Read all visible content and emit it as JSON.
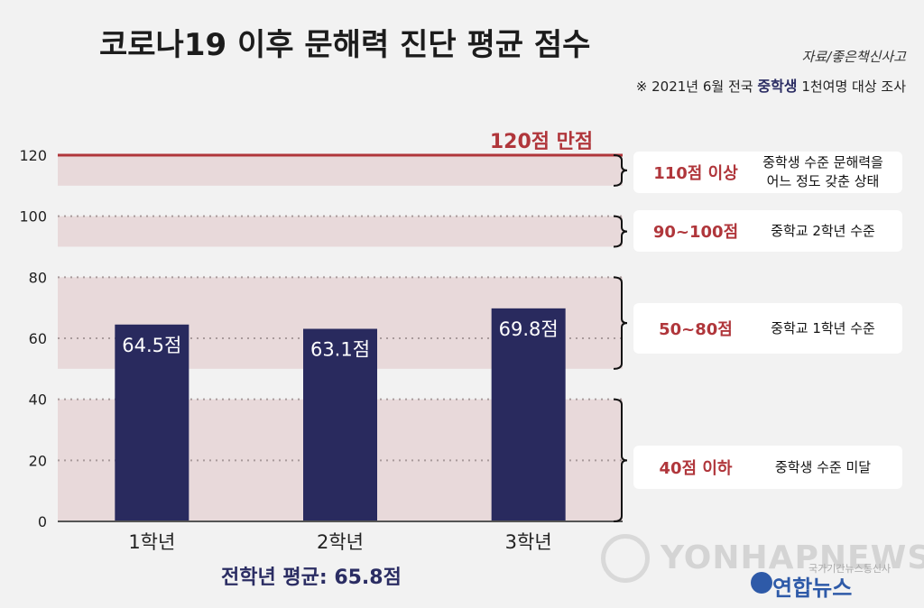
{
  "header": {
    "title": "코로나19 이후 문해력 진단 평균 점수",
    "source": "자료/좋은책신사고",
    "note_prefix": "※ 2021년 6월 전국",
    "note_highlight": "중학생",
    "note_suffix": "1천여명 대상 조사"
  },
  "chart_data": {
    "type": "bar",
    "categories": [
      "1학년",
      "2학년",
      "3학년"
    ],
    "values": [
      64.5,
      63.1,
      69.8
    ],
    "value_labels": [
      "64.5점",
      "63.1점",
      "69.8점"
    ],
    "ylim": [
      0,
      120
    ],
    "yticks": [
      0,
      20,
      40,
      60,
      80,
      100,
      120
    ],
    "grid": true,
    "bar_color": "#292a5e",
    "max_line": {
      "value": 120,
      "label": "120점 만점",
      "color": "#b0363b"
    },
    "bands": [
      {
        "from": 110,
        "to": 120
      },
      {
        "from": 90,
        "to": 100
      },
      {
        "from": 50,
        "to": 80
      },
      {
        "from": 0,
        "to": 40
      }
    ],
    "band_color": "#e8d9da"
  },
  "legend": [
    {
      "range": "110점 이상",
      "desc1": "중학생 수준 문해력을",
      "desc2": "어느 정도 갖춘 상태"
    },
    {
      "range": "90~100점",
      "desc1": "중학교 2학년 수준",
      "desc2": ""
    },
    {
      "range": "50~80점",
      "desc1": "중학교 1학년 수준",
      "desc2": ""
    },
    {
      "range": "40점 이하",
      "desc1": "중학생 수준 미달",
      "desc2": ""
    }
  ],
  "footer": {
    "average": "전학년 평균: 65.8점"
  },
  "watermark": {
    "text": "YONHAPNEWS",
    "sub": "국가기간뉴스통신사",
    "logo": "연합뉴스"
  }
}
